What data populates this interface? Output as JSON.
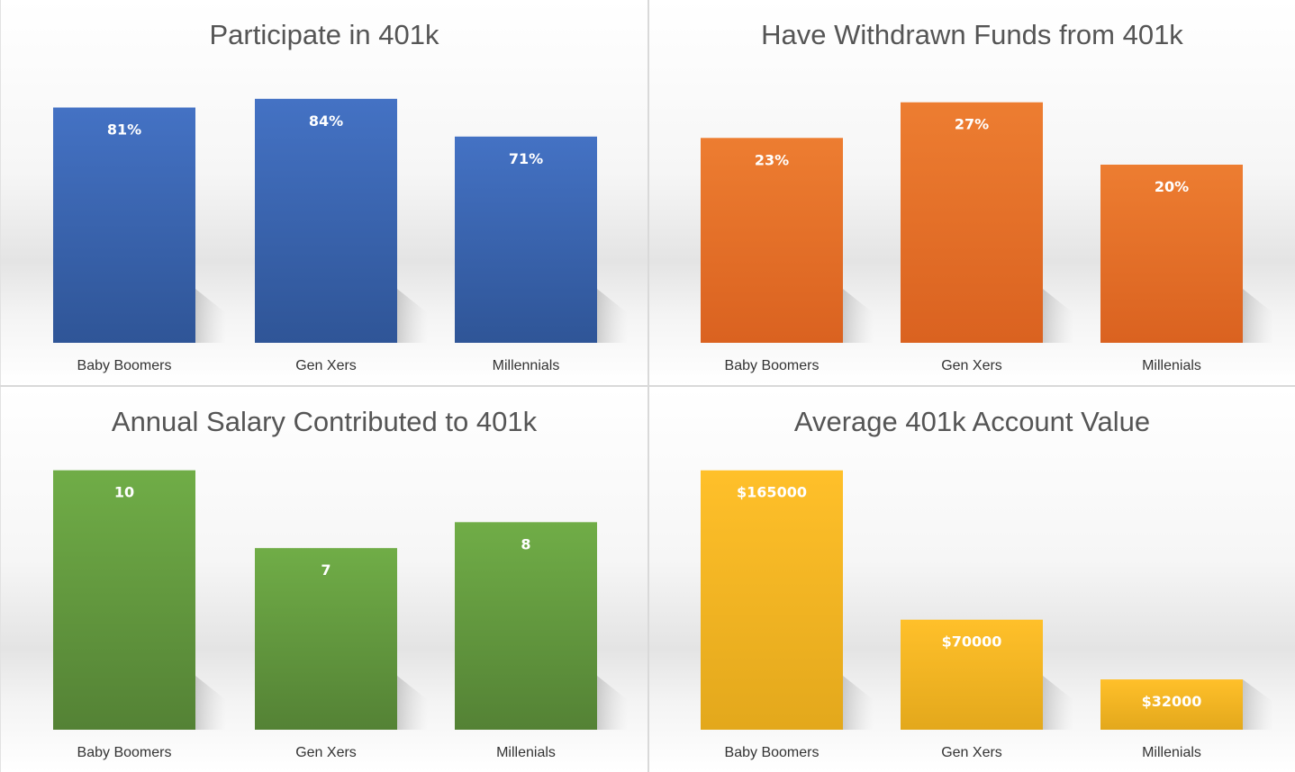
{
  "chart_data": [
    {
      "type": "bar",
      "title": "Participate in 401k",
      "categories": [
        "Baby Boomers",
        "Gen Xers",
        "Millennials"
      ],
      "values": [
        81,
        84,
        71
      ],
      "value_labels": [
        "81%",
        "84%",
        "71%"
      ],
      "ylim": [
        0,
        92
      ],
      "color": "#4472C4",
      "color_dark": "#2F5597",
      "grid": false,
      "legend": "none"
    },
    {
      "type": "bar",
      "title": "Have Withdrawn Funds from 401k",
      "categories": [
        "Baby Boomers",
        "Gen Xers",
        "Millenials"
      ],
      "values": [
        23,
        27,
        20
      ],
      "value_labels": [
        "23%",
        "27%",
        "20%"
      ],
      "ylim": [
        0,
        30
      ],
      "color": "#ED7D31",
      "color_dark": "#DA6220",
      "grid": false,
      "legend": "none"
    },
    {
      "type": "bar",
      "title": "Annual Salary Contributed to 401k",
      "categories": [
        "Baby Boomers",
        "Gen Xers",
        "Millenials"
      ],
      "values": [
        10,
        7,
        8
      ],
      "value_labels": [
        "10",
        "7",
        "8"
      ],
      "ylim": [
        0,
        10.3
      ],
      "color": "#70AD47",
      "color_dark": "#548235",
      "grid": false,
      "legend": "none"
    },
    {
      "type": "bar",
      "title": "Average 401k Account Value",
      "categories": [
        "Baby Boomers",
        "Gen Xers",
        "Millenials"
      ],
      "values": [
        165000,
        70000,
        32000
      ],
      "value_labels": [
        "$165000",
        "$70000",
        "$32000"
      ],
      "ylim": [
        0,
        170000
      ],
      "color": "#FFC02A",
      "color_dark": "#E3A81C",
      "grid": false,
      "legend": "none"
    }
  ]
}
